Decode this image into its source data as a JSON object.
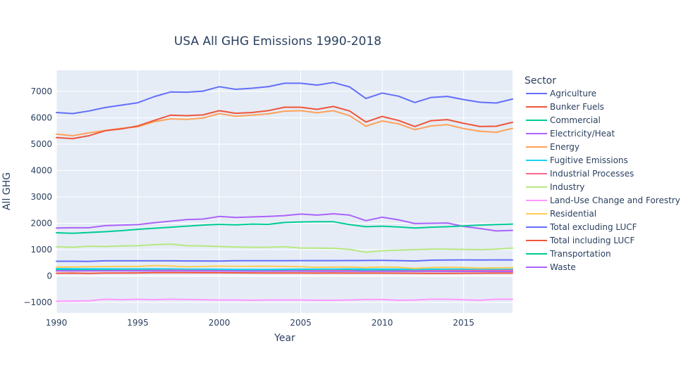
{
  "chart_data": {
    "type": "line",
    "title": "USA All GHG Emissions 1990-2018",
    "xlabel": "Year",
    "ylabel": "All GHG",
    "legend_title": "Sector",
    "legend_position": "right",
    "grid": true,
    "xlim": [
      1990,
      2018
    ],
    "ylim": [
      -1400,
      7800
    ],
    "xticks": [
      1990,
      1995,
      2000,
      2005,
      2010,
      2015
    ],
    "yticks": [
      -1000,
      0,
      1000,
      2000,
      3000,
      4000,
      5000,
      6000,
      7000
    ],
    "x": [
      1990,
      1991,
      1992,
      1993,
      1994,
      1995,
      1996,
      1997,
      1998,
      1999,
      2000,
      2001,
      2002,
      2003,
      2004,
      2005,
      2006,
      2007,
      2008,
      2009,
      2010,
      2011,
      2012,
      2013,
      2014,
      2015,
      2016,
      2017,
      2018
    ],
    "series": [
      {
        "name": "Agriculture",
        "color": "#636efa",
        "values": [
          560,
          560,
          555,
          575,
          575,
          575,
          575,
          575,
          572,
          570,
          568,
          580,
          580,
          580,
          582,
          583,
          584,
          585,
          586,
          590,
          592,
          585,
          570,
          600,
          605,
          610,
          608,
          612,
          612
        ]
      },
      {
        "name": "Bunker Fuels",
        "color": "#EF553B",
        "values": [
          105,
          108,
          100,
          112,
          115,
          118,
          125,
          128,
          126,
          124,
          122,
          120,
          118,
          115,
          112,
          112,
          110,
          112,
          110,
          108,
          108,
          106,
          104,
          102,
          102,
          105,
          106,
          108,
          110
        ]
      },
      {
        "name": "Commercial",
        "color": "#00cc96",
        "values": [
          230,
          235,
          232,
          230,
          230,
          232,
          240,
          232,
          230,
          233,
          240,
          238,
          235,
          238,
          235,
          232,
          230,
          235,
          238,
          240,
          240,
          235,
          225,
          240,
          240,
          245,
          242,
          245,
          248
        ]
      },
      {
        "name": "Electricity/Heat",
        "color": "#ab63fa",
        "values": [
          1820,
          1830,
          1830,
          1910,
          1930,
          1950,
          2020,
          2080,
          2140,
          2160,
          2260,
          2220,
          2240,
          2260,
          2290,
          2350,
          2310,
          2360,
          2310,
          2100,
          2230,
          2130,
          1990,
          2000,
          2010,
          1880,
          1800,
          1710,
          1730
        ]
      },
      {
        "name": "Energy",
        "color": "#FFA15A",
        "values": [
          5380,
          5320,
          5430,
          5520,
          5600,
          5660,
          5850,
          5960,
          5940,
          5990,
          6160,
          6060,
          6100,
          6150,
          6250,
          6270,
          6190,
          6270,
          6080,
          5680,
          5880,
          5770,
          5550,
          5690,
          5740,
          5590,
          5490,
          5450,
          5600
        ]
      },
      {
        "name": "Fugitive Emissions",
        "color": "#19d3f3",
        "values": [
          280,
          278,
          275,
          272,
          270,
          268,
          272,
          270,
          262,
          258,
          255,
          250,
          250,
          252,
          255,
          258,
          262,
          265,
          268,
          262,
          265,
          260,
          255,
          260,
          262,
          258,
          252,
          250,
          255
        ]
      },
      {
        "name": "Industrial Processes",
        "color": "#FF6692",
        "values": [
          200,
          195,
          198,
          200,
          205,
          208,
          212,
          215,
          210,
          208,
          200,
          188,
          190,
          190,
          195,
          198,
          200,
          205,
          200,
          175,
          185,
          190,
          195,
          200,
          205,
          210,
          210,
          212,
          215
        ]
      },
      {
        "name": "Industry",
        "color": "#B6E880",
        "values": [
          1110,
          1090,
          1130,
          1120,
          1140,
          1150,
          1190,
          1210,
          1150,
          1140,
          1120,
          1100,
          1090,
          1090,
          1110,
          1060,
          1060,
          1050,
          1010,
          900,
          960,
          980,
          1000,
          1020,
          1020,
          1010,
          1000,
          1020,
          1060
        ]
      },
      {
        "name": "Land-Use Change and Forestry",
        "color": "#FF97FF",
        "values": [
          -960,
          -950,
          -940,
          -880,
          -900,
          -880,
          -900,
          -880,
          -890,
          -900,
          -910,
          -910,
          -920,
          -910,
          -910,
          -910,
          -920,
          -920,
          -910,
          -890,
          -890,
          -920,
          -910,
          -880,
          -880,
          -900,
          -920,
          -880,
          -880
        ]
      },
      {
        "name": "Residential",
        "color": "#FECB52",
        "values": [
          340,
          345,
          355,
          360,
          360,
          362,
          395,
          378,
          350,
          362,
          375,
          365,
          365,
          370,
          362,
          355,
          325,
          340,
          345,
          320,
          345,
          330,
          290,
          320,
          330,
          320,
          300,
          310,
          315
        ]
      },
      {
        "name": "Total excluding LUCF",
        "color": "#636efa",
        "values": [
          6200,
          6160,
          6260,
          6390,
          6480,
          6570,
          6800,
          6980,
          6970,
          7010,
          7180,
          7080,
          7120,
          7180,
          7310,
          7310,
          7240,
          7340,
          7170,
          6730,
          6940,
          6820,
          6580,
          6770,
          6810,
          6690,
          6590,
          6560,
          6710
        ]
      },
      {
        "name": "Total including LUCF",
        "color": "#EF553B",
        "values": [
          5250,
          5210,
          5320,
          5510,
          5580,
          5690,
          5900,
          6100,
          6080,
          6110,
          6270,
          6170,
          6200,
          6270,
          6400,
          6400,
          6320,
          6430,
          6260,
          5840,
          6050,
          5900,
          5670,
          5890,
          5930,
          5790,
          5670,
          5680,
          5830
        ]
      },
      {
        "name": "Transportation",
        "color": "#00cc96",
        "values": [
          1640,
          1620,
          1650,
          1680,
          1720,
          1770,
          1810,
          1850,
          1890,
          1930,
          1960,
          1940,
          1970,
          1960,
          2030,
          2050,
          2060,
          2060,
          1950,
          1870,
          1890,
          1860,
          1820,
          1850,
          1870,
          1900,
          1930,
          1950,
          1970
        ]
      },
      {
        "name": "Waste",
        "color": "#ab63fa",
        "values": [
          195,
          196,
          197,
          198,
          196,
          195,
          194,
          193,
          192,
          190,
          188,
          186,
          185,
          184,
          183,
          183,
          182,
          181,
          181,
          180,
          178,
          177,
          176,
          175,
          174,
          174,
          173,
          172,
          172
        ]
      }
    ]
  }
}
